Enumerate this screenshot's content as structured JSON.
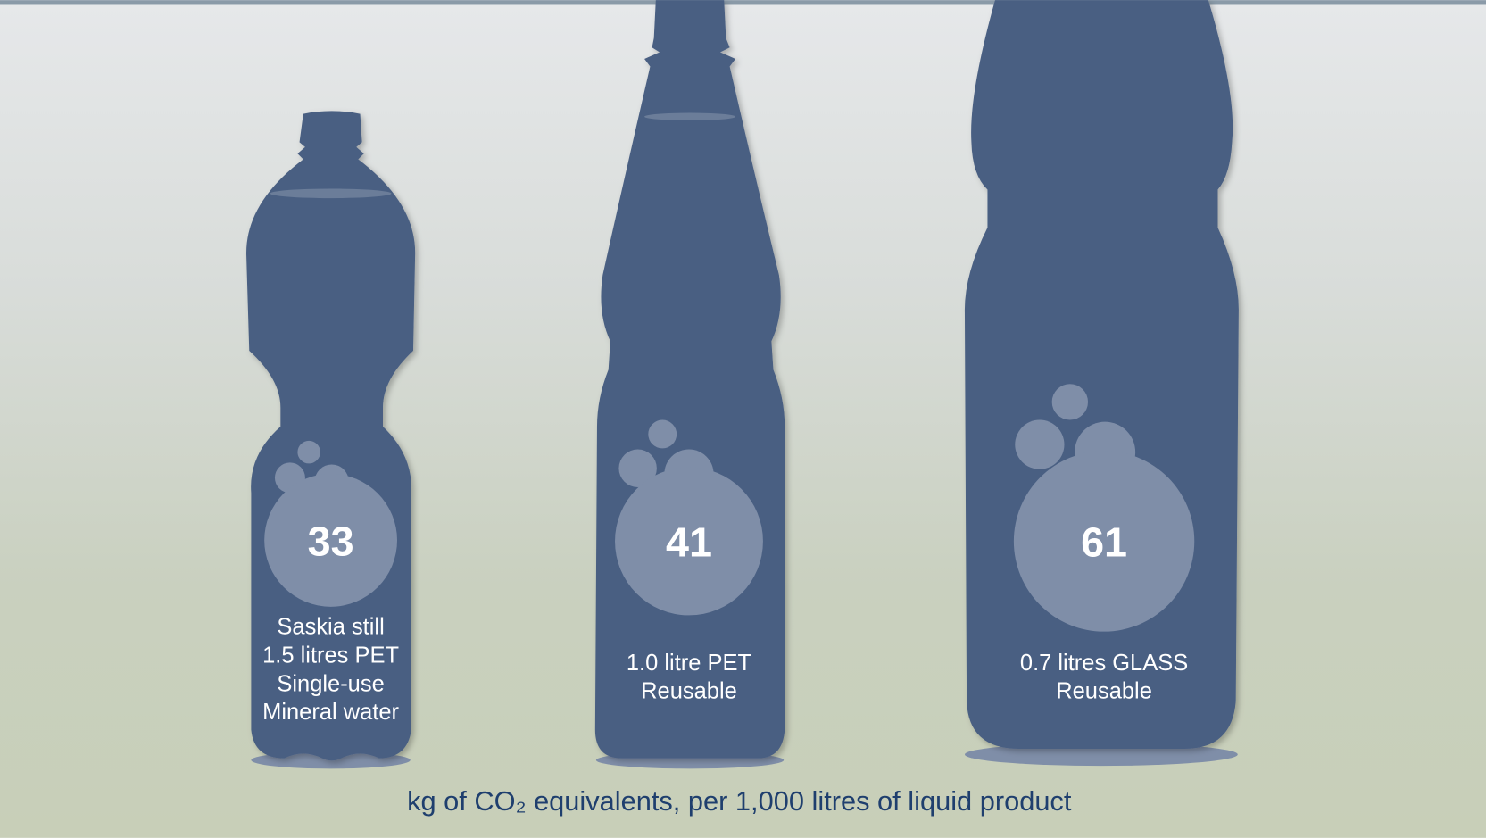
{
  "chart_data": {
    "type": "pictograph",
    "categories": [
      "Saskia still\n1.5 litres PET\nSingle-use\nMineral water",
      "1.0 litre PET\nReusable",
      "0.7 litres GLASS\nReusable"
    ],
    "values": [
      33,
      41,
      61
    ],
    "x_label": "kg of CO₂ equivalents, per 1,000 litres of liquid product",
    "color": "#7f8ea8"
  }
}
